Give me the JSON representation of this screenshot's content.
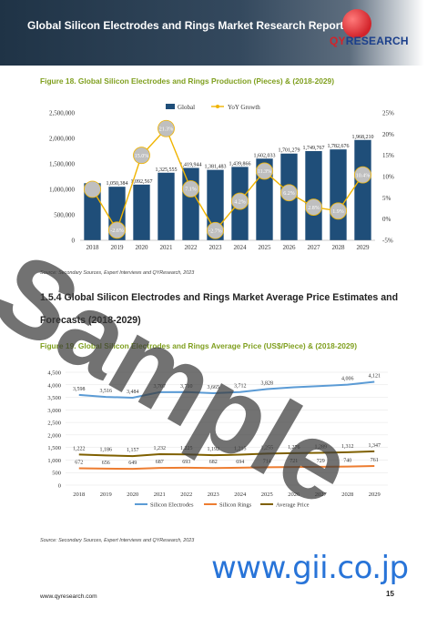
{
  "header": {
    "title": "Global Silicon Electrodes and Rings Market Research Report 2023",
    "logo_text_qy": "QY",
    "logo_text_rest": "RESEARCH"
  },
  "figure18": {
    "caption": "Figure 18.   Global Silicon Electrodes and Rings Production (Pieces) & (2018-2029)",
    "source": "Source: Secondary Sources, Expert Interviews and QYResearch, 2023"
  },
  "section": {
    "line1": "1.5.4   Global Silicon Electrodes and Rings Market Average Price Estimates and",
    "line2": "Forecasts (2018-2029)"
  },
  "figure19": {
    "caption": "Figure 19.   Global Silicon Electrodes and Rings Average Price (US$/Piece) & (2018-2029)",
    "source": "Source: Secondary Sources, Expert Interviews and QYResearch, 2023"
  },
  "footer": {
    "url": "www.qyresearch.com",
    "page": "15"
  },
  "overlays": {
    "watermark": "Sample",
    "gii": "www.gii.co.jp"
  },
  "colors": {
    "bar": "#1f4e79",
    "growth": "#f0b400",
    "electrodes": "#5b9bd5",
    "rings": "#ed7d31",
    "avg": "#7f6000",
    "caption": "#7f9f1e"
  },
  "chart_data": [
    {
      "type": "bar",
      "categories": [
        "2018",
        "2019",
        "2020",
        "2021",
        "2022",
        "2023",
        "2024",
        "2025",
        "2026",
        "2027",
        "2028",
        "2029"
      ],
      "series": [
        {
          "name": "Global",
          "values": [
            1120000,
            1050384,
            1092567,
            1325555,
            1419944,
            1381483,
            1439866,
            1602033,
            1701279,
            1749767,
            1782676,
            1968210
          ],
          "labels": [
            "",
            "1,050,384",
            "1,092,567",
            "1,325,555",
            "1,419,944",
            "1,381,483",
            "1,439,866",
            "1,602,033",
            "1,701,279",
            "1,749,767",
            "1,782,676",
            "1,968,210"
          ]
        },
        {
          "name": "YoY Growth",
          "values": [
            7.0,
            -2.6,
            15.0,
            21.3,
            7.1,
            -2.7,
            4.2,
            11.3,
            6.2,
            2.8,
            1.9,
            10.4
          ],
          "labels": [
            "",
            "-2.6%",
            "15.0%",
            "21.3%",
            "7.1%",
            "-2.7%",
            "4.2%",
            "11.3%",
            "6.2%",
            "2.8%",
            "1.9%",
            "10.4%"
          ]
        }
      ],
      "ylim": [
        0,
        2500000
      ],
      "y_ticks": [
        "0",
        "500,000",
        "1,000,000",
        "1,500,000",
        "2,000,000",
        "2,500,000"
      ],
      "y2lim": [
        -5,
        25
      ],
      "y2_ticks": [
        "-5%",
        "0%",
        "5%",
        "10%",
        "15%",
        "20%",
        "25%"
      ],
      "legend": "top"
    },
    {
      "type": "line",
      "categories": [
        "2018",
        "2019",
        "2020",
        "2021",
        "2022",
        "2023",
        "2024",
        "2025",
        "2026",
        "2027",
        "2028",
        "2029"
      ],
      "series": [
        {
          "name": "Silicon Electrodes",
          "values": [
            3598,
            3516,
            3484,
            3707,
            3710,
            3665,
            3712,
            3828,
            3900,
            3950,
            4006,
            4121
          ],
          "labels": [
            "3,598",
            "3,516",
            "3,484",
            "3,707",
            "3,710",
            "3,665",
            "3,712",
            "3,828",
            "",
            "",
            "4,006",
            "4,121"
          ]
        },
        {
          "name": "Silicon Rings",
          "values": [
            672,
            656,
            649,
            687,
            693,
            682,
            694,
            714,
            721,
            729,
            740,
            761
          ],
          "labels": [
            "672",
            "656",
            "649",
            "687",
            "693",
            "682",
            "694",
            "714",
            "721",
            "729",
            "740",
            "761"
          ]
        },
        {
          "name": "Average Price",
          "values": [
            1222,
            1186,
            1157,
            1232,
            1225,
            1192,
            1215,
            1255,
            1276,
            1289,
            1312,
            1347
          ],
          "labels": [
            "1,222",
            "1,186",
            "1,157",
            "1,232",
            "1,225",
            "1,192",
            "1,215",
            "1,255",
            "1,276",
            "1,289",
            "1,312",
            "1,347"
          ]
        }
      ],
      "ylim": [
        0,
        4500
      ],
      "y_ticks": [
        "0",
        "500",
        "1,000",
        "1,500",
        "2,000",
        "2,500",
        "3,000",
        "3,500",
        "4,000",
        "4,500"
      ],
      "legend": "bottom"
    }
  ]
}
